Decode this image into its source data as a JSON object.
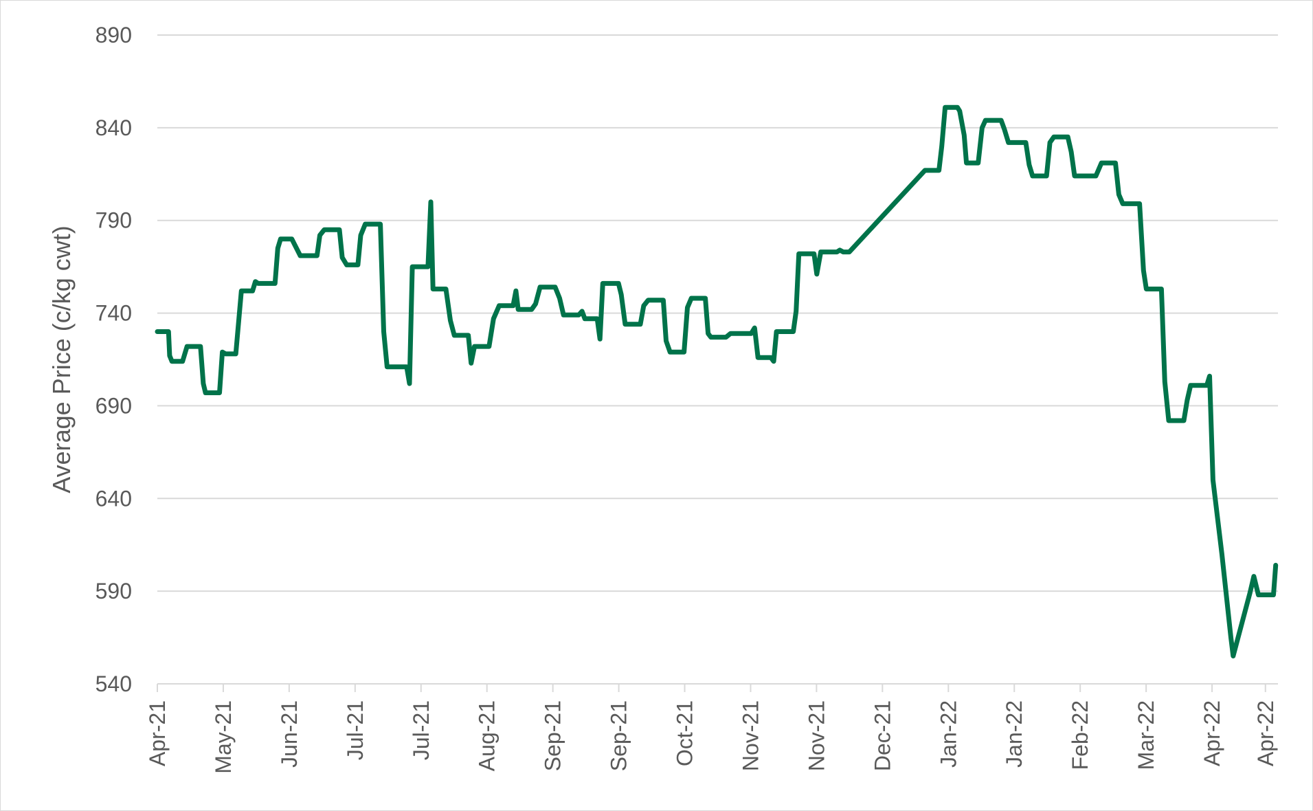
{
  "chart_data": {
    "type": "line",
    "title": "",
    "xlabel": "",
    "ylabel": "Average Price (c/kg cwt)",
    "ylim": [
      540,
      890
    ],
    "yticks": [
      540,
      590,
      640,
      690,
      740,
      790,
      840,
      890
    ],
    "x_tick_labels": [
      "Apr-21",
      "May-21",
      "Jun-21",
      "Jul-21",
      "Jul-21",
      "Aug-21",
      "Sep-21",
      "Sep-21",
      "Oct-21",
      "Nov-21",
      "Nov-21",
      "Dec-21",
      "Jan-22",
      "Jan-22",
      "Feb-22",
      "Mar-22",
      "Apr-22",
      "Apr-22"
    ],
    "grid": true,
    "legend": "none",
    "line_color": "#00734a",
    "gridline_color": "#d9d9d9",
    "series": [
      {
        "values": [
          [
            0.0,
            730
          ],
          [
            2.0,
            730
          ],
          [
            2.2,
            717
          ],
          [
            2.6,
            714
          ],
          [
            4.5,
            714
          ],
          [
            5.3,
            722
          ],
          [
            6.7,
            722
          ],
          [
            7.7,
            722
          ],
          [
            8.2,
            702
          ],
          [
            8.6,
            697
          ],
          [
            10.0,
            697
          ],
          [
            11.1,
            697
          ],
          [
            11.6,
            719
          ],
          [
            12.2,
            718
          ],
          [
            14.0,
            718
          ],
          [
            15.0,
            752
          ],
          [
            16.5,
            752
          ],
          [
            17.0,
            752
          ],
          [
            17.5,
            757
          ],
          [
            18.0,
            756
          ],
          [
            21.0,
            756
          ],
          [
            21.5,
            775
          ],
          [
            22.0,
            780
          ],
          [
            24.0,
            780
          ],
          [
            24.5,
            777
          ],
          [
            25.5,
            771
          ],
          [
            26.5,
            771
          ],
          [
            28.5,
            771
          ],
          [
            29.0,
            782
          ],
          [
            29.8,
            785
          ],
          [
            31.5,
            785
          ],
          [
            32.5,
            785
          ],
          [
            33.0,
            770
          ],
          [
            33.8,
            766
          ],
          [
            34.5,
            766
          ],
          [
            35.8,
            766
          ],
          [
            36.3,
            782
          ],
          [
            37.1,
            788
          ],
          [
            39.0,
            788
          ],
          [
            39.8,
            788
          ],
          [
            40.4,
            730
          ],
          [
            41.0,
            711
          ],
          [
            43.0,
            711
          ],
          [
            44.5,
            711
          ],
          [
            45.0,
            702
          ],
          [
            45.5,
            765
          ],
          [
            46.5,
            765
          ],
          [
            48.3,
            765
          ],
          [
            48.8,
            800
          ],
          [
            49.2,
            753
          ],
          [
            50.5,
            753
          ],
          [
            51.5,
            753
          ],
          [
            52.3,
            736
          ],
          [
            53.0,
            728
          ],
          [
            55.0,
            728
          ],
          [
            55.5,
            728
          ],
          [
            56.0,
            713
          ],
          [
            56.6,
            722
          ],
          [
            58.5,
            722
          ],
          [
            59.2,
            722
          ],
          [
            60.0,
            737
          ],
          [
            61.0,
            744
          ],
          [
            63.5,
            744
          ],
          [
            64.0,
            752
          ],
          [
            64.4,
            742
          ],
          [
            66.8,
            742
          ],
          [
            67.5,
            745
          ],
          [
            68.3,
            754
          ],
          [
            71.0,
            754
          ],
          [
            71.8,
            748
          ],
          [
            72.5,
            739
          ],
          [
            74.0,
            739
          ],
          [
            75.2,
            739
          ],
          [
            75.8,
            741
          ],
          [
            76.3,
            737
          ],
          [
            78.5,
            737
          ],
          [
            79.0,
            726
          ],
          [
            79.5,
            756
          ],
          [
            81.3,
            756
          ],
          [
            82.3,
            756
          ],
          [
            82.8,
            750
          ],
          [
            83.5,
            734
          ],
          [
            84.5,
            734
          ],
          [
            86.2,
            734
          ],
          [
            86.8,
            744
          ],
          [
            87.6,
            747
          ],
          [
            89.5,
            747
          ],
          [
            90.3,
            747
          ],
          [
            90.8,
            725
          ],
          [
            91.5,
            719
          ],
          [
            93.5,
            719
          ],
          [
            94.0,
            719
          ],
          [
            94.6,
            743
          ],
          [
            95.3,
            748
          ],
          [
            97.0,
            748
          ],
          [
            97.8,
            748
          ],
          [
            98.3,
            729
          ],
          [
            98.8,
            727
          ],
          [
            101.0,
            727
          ],
          [
            101.5,
            727
          ],
          [
            102.3,
            729
          ],
          [
            104.0,
            729
          ],
          [
            106.0,
            729
          ],
          [
            106.6,
            732
          ],
          [
            107.2,
            716
          ],
          [
            109.5,
            716
          ],
          [
            110.0,
            714
          ],
          [
            110.5,
            730
          ],
          [
            112.0,
            730
          ],
          [
            113.5,
            730
          ],
          [
            114.0,
            741
          ],
          [
            114.5,
            772
          ],
          [
            116.5,
            772
          ],
          [
            117.2,
            772
          ],
          [
            117.7,
            761
          ],
          [
            118.4,
            773
          ],
          [
            120.0,
            773
          ],
          [
            121.3,
            773
          ],
          [
            121.8,
            774
          ],
          [
            122.4,
            773
          ],
          [
            123.5,
            773
          ],
          [
            137.0,
            817
          ],
          [
            138.5,
            817
          ],
          [
            139.5,
            817
          ],
          [
            140.0,
            830
          ],
          [
            140.6,
            851
          ],
          [
            142.0,
            851
          ],
          [
            142.8,
            851
          ],
          [
            143.2,
            849
          ],
          [
            144.0,
            836
          ],
          [
            144.4,
            821
          ],
          [
            146.5,
            821
          ],
          [
            147.2,
            840
          ],
          [
            147.8,
            844
          ],
          [
            150.0,
            844
          ],
          [
            150.6,
            844
          ],
          [
            151.2,
            839
          ],
          [
            151.9,
            832
          ],
          [
            153.5,
            832
          ],
          [
            155.0,
            832
          ],
          [
            155.6,
            820
          ],
          [
            156.2,
            814
          ],
          [
            158.0,
            814
          ],
          [
            158.7,
            814
          ],
          [
            159.3,
            832
          ],
          [
            160.0,
            835
          ],
          [
            162.5,
            835
          ],
          [
            163.1,
            827
          ],
          [
            163.7,
            814
          ],
          [
            166.5,
            814
          ],
          [
            167.5,
            814
          ],
          [
            168.5,
            821
          ],
          [
            171.0,
            821
          ],
          [
            171.6,
            804
          ],
          [
            172.3,
            799
          ],
          [
            174.5,
            799
          ],
          [
            175.3,
            799
          ],
          [
            176.0,
            763
          ],
          [
            176.5,
            753
          ],
          [
            178.5,
            753
          ],
          [
            179.2,
            753
          ],
          [
            179.8,
            703
          ],
          [
            180.5,
            682
          ],
          [
            182.5,
            682
          ],
          [
            183.2,
            682
          ],
          [
            183.8,
            693
          ],
          [
            184.4,
            701
          ],
          [
            186.5,
            701
          ],
          [
            187.3,
            701
          ],
          [
            187.8,
            706
          ],
          [
            188.4,
            650
          ],
          [
            190.0,
            610
          ],
          [
            191.6,
            565
          ],
          [
            192.0,
            555
          ],
          [
            195.0,
            589
          ],
          [
            195.7,
            598
          ],
          [
            196.5,
            588
          ],
          [
            198.5,
            588
          ],
          [
            199.2,
            588
          ],
          [
            199.6,
            604
          ]
        ]
      }
    ]
  }
}
